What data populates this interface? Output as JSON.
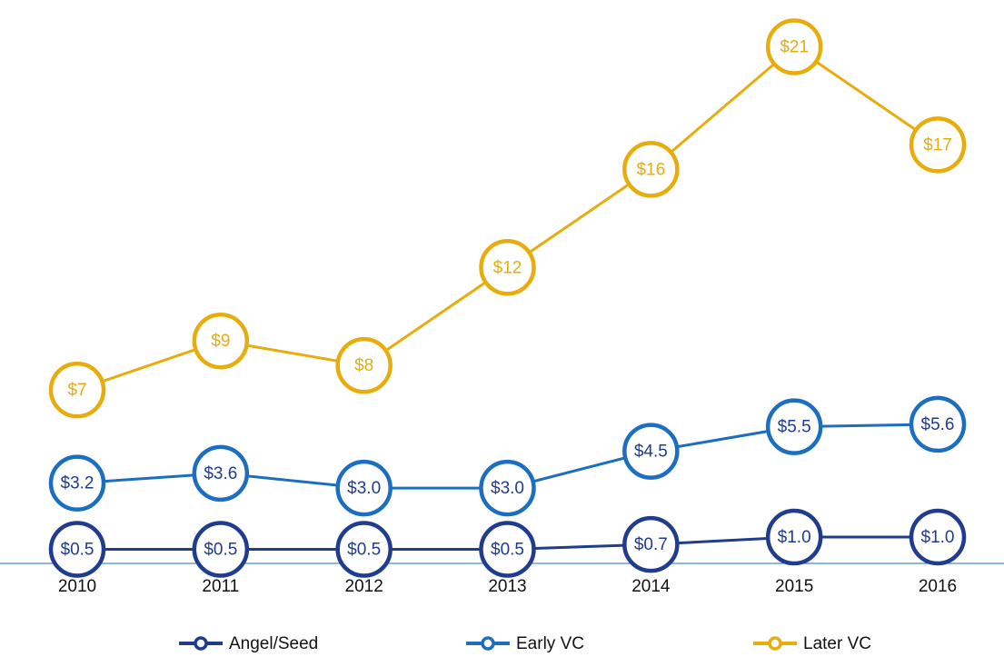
{
  "chart_data": {
    "type": "line",
    "categories": [
      "2010",
      "2011",
      "2012",
      "2013",
      "2014",
      "2015",
      "2016"
    ],
    "ylim": [
      0,
      22.5
    ],
    "series": [
      {
        "name": "Angel/Seed",
        "color": "#1f3c8f",
        "values": [
          0.5,
          0.5,
          0.5,
          0.5,
          0.7,
          1.0,
          1.0
        ],
        "value_labels": [
          "$0.5",
          "$0.5",
          "$0.5",
          "$0.5",
          "$0.7",
          "$1.0",
          "$1.0"
        ]
      },
      {
        "name": "Early VC",
        "color": "#1c6ec0",
        "values": [
          3.2,
          3.6,
          3.0,
          3.0,
          4.5,
          5.5,
          5.6
        ],
        "value_labels": [
          "$3.2",
          "$3.6",
          "$3.0",
          "$3.0",
          "$4.5",
          "$5.5",
          "$5.6"
        ]
      },
      {
        "name": "Later VC",
        "color": "#e6ad0c",
        "values": [
          7,
          9,
          8,
          12,
          16,
          21,
          17
        ],
        "value_labels": [
          "$7",
          "$9",
          "$8",
          "$12",
          "$16",
          "$21",
          "$17"
        ]
      }
    ],
    "legend": "bottom"
  }
}
